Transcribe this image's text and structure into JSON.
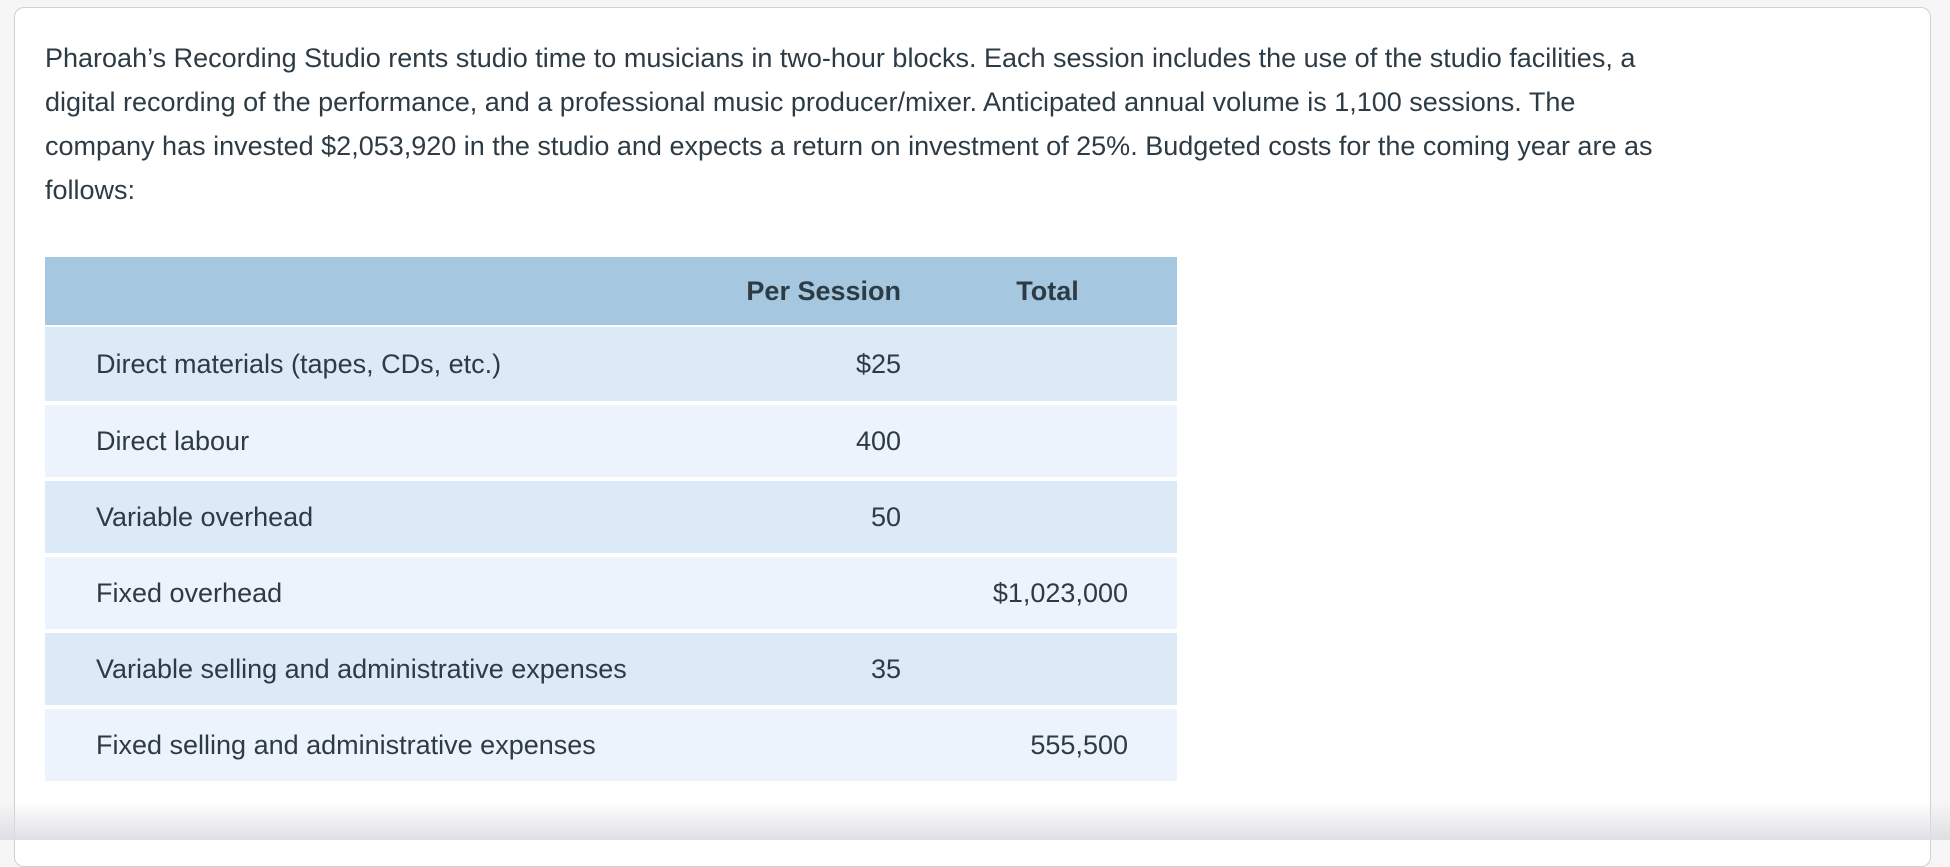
{
  "problem": {
    "lines": [
      "Pharoah’s Recording Studio rents studio time to musicians in two-hour blocks. Each session includes the use of the studio facilities, a",
      "digital recording of the performance, and a professional music producer/mixer. Anticipated annual volume is 1,100 sessions. The",
      "company has invested $2,053,920 in the studio and expects a return on investment of 25%. Budgeted costs for the coming year are as",
      "follows:"
    ]
  },
  "budget_table": {
    "columns": {
      "item": "",
      "per_session": "Per Session",
      "total": "Total"
    },
    "rows": [
      {
        "label": "Direct materials (tapes, CDs, etc.)",
        "per_session": "$25",
        "total": ""
      },
      {
        "label": "Direct labour",
        "per_session": "400",
        "total": ""
      },
      {
        "label": "Variable overhead",
        "per_session": "50",
        "total": ""
      },
      {
        "label": "Fixed overhead",
        "per_session": "",
        "total": "$1,023,000"
      },
      {
        "label": "Variable selling and administrative expenses",
        "per_session": "35",
        "total": ""
      },
      {
        "label": "Fixed selling and administrative expenses",
        "per_session": "",
        "total": "555,500"
      }
    ]
  },
  "colors": {
    "page_bg": "#f6f6f7",
    "card_bg": "#ffffff",
    "card_border": "#cfd1d4",
    "table_header_bg": "#a5c7df",
    "row_dark_bg": "#dce9f7",
    "row_light_bg": "#ecf3fc",
    "text": "#2d3b45"
  }
}
